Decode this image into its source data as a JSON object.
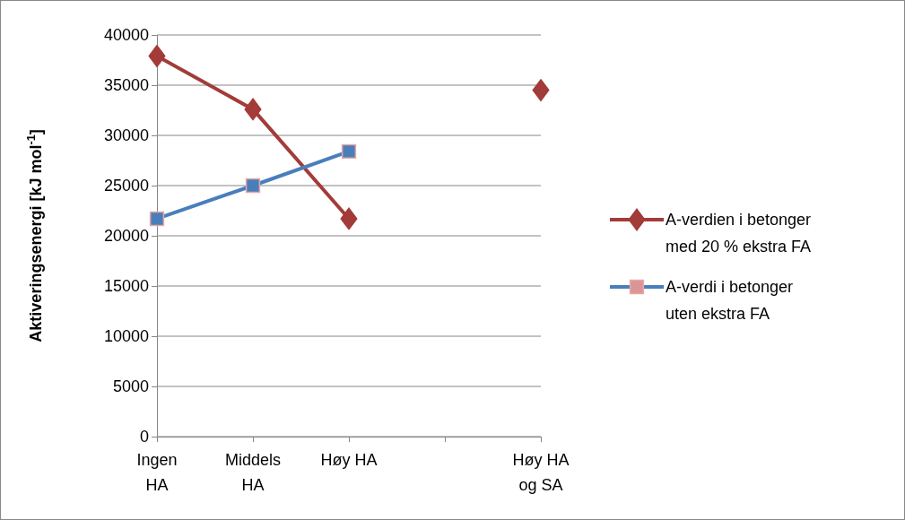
{
  "chart_data": {
    "type": "line",
    "ylabel": "Aktiveringsenergi [kJ mol$^{-1}$]",
    "categories": [
      "Ingen HA",
      "Middels HA",
      "Høy HA",
      null,
      "Høy HA og SA"
    ],
    "series": [
      {
        "name": "A-verdien i betonger med 20 % ekstra FA",
        "color": "#a33b39",
        "marker": "diamond",
        "values": [
          37900,
          32600,
          21700,
          null,
          34500
        ]
      },
      {
        "name": "A-verdi i betonger uten ekstra FA",
        "color": "#4a7ebb",
        "marker": "square",
        "values": [
          21700,
          25000,
          28400,
          null,
          null
        ]
      }
    ],
    "ylim": [
      0,
      40000
    ],
    "yticks": [
      0,
      5000,
      10000,
      15000,
      20000,
      25000,
      30000,
      35000,
      40000
    ],
    "grid": "y",
    "legend": "right"
  }
}
